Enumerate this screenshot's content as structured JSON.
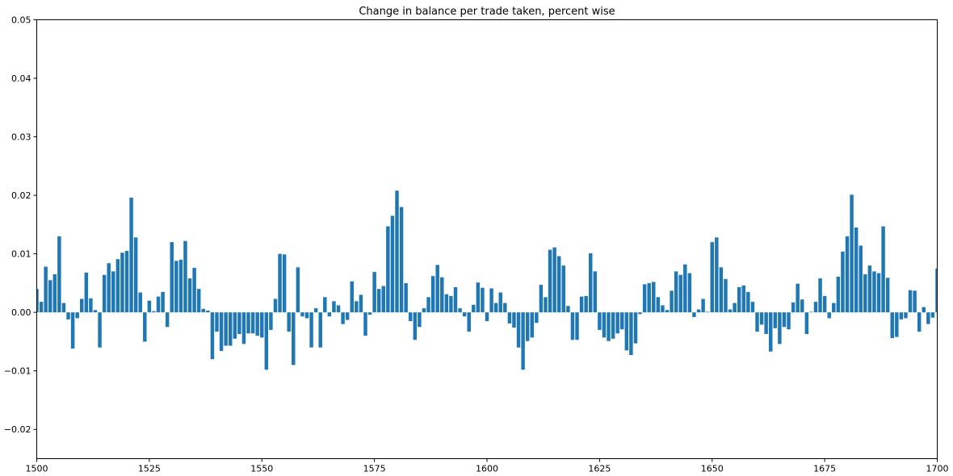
{
  "chart_data": {
    "type": "bar",
    "title": "Change in balance per trade taken, percent wise",
    "xlabel": "",
    "ylabel": "",
    "xlim": [
      1500,
      1700
    ],
    "ylim": [
      -0.025,
      0.05
    ],
    "xticks": [
      1500,
      1525,
      1550,
      1575,
      1600,
      1625,
      1650,
      1675,
      1700
    ],
    "xtick_labels": [
      "1500",
      "1525",
      "1550",
      "1575",
      "1600",
      "1625",
      "1650",
      "1675",
      "1700"
    ],
    "yticks": [
      -0.02,
      -0.01,
      0.0,
      0.01,
      0.02,
      0.03,
      0.04,
      0.05
    ],
    "ytick_labels": [
      "−0.02",
      "−0.01",
      "0.00",
      "0.01",
      "0.02",
      "0.03",
      "0.04",
      "0.05"
    ],
    "grid": false,
    "bar_color": "#1f77b4",
    "x_start": 1500,
    "values": [
      0.004,
      0.0018,
      0.0078,
      0.0055,
      0.0065,
      0.013,
      0.0016,
      -0.0012,
      -0.0062,
      -0.001,
      0.0023,
      0.0068,
      0.0024,
      0.0004,
      -0.006,
      0.0064,
      0.0084,
      0.007,
      0.0091,
      0.0102,
      0.0105,
      0.0196,
      0.0128,
      0.0034,
      -0.005,
      0.002,
      0.0002,
      0.0027,
      0.0035,
      -0.0025,
      0.012,
      0.0088,
      0.009,
      0.0122,
      0.0058,
      0.0076,
      0.004,
      0.0006,
      0.0003,
      -0.008,
      -0.0033,
      -0.0066,
      -0.0057,
      -0.0057,
      -0.0045,
      -0.0037,
      -0.0054,
      -0.0036,
      -0.0036,
      -0.004,
      -0.0043,
      -0.0098,
      -0.003,
      0.0023,
      0.01,
      0.0099,
      -0.0033,
      -0.009,
      0.0077,
      -0.0007,
      -0.001,
      -0.006,
      0.0007,
      -0.006,
      0.0026,
      -0.0007,
      0.0019,
      0.0012,
      -0.002,
      -0.0013,
      0.0053,
      0.0019,
      0.003,
      -0.004,
      -0.0004,
      0.0069,
      0.004,
      0.0045,
      0.0147,
      0.0165,
      0.0208,
      0.018,
      0.005,
      -0.0015,
      -0.0047,
      -0.0025,
      0.0007,
      0.0026,
      0.0062,
      0.0081,
      0.006,
      0.0031,
      0.0028,
      0.0043,
      0.0007,
      -0.0007,
      -0.0033,
      0.0013,
      0.0051,
      0.0042,
      -0.0015,
      0.0041,
      0.0016,
      0.0034,
      0.0016,
      -0.0019,
      -0.0026,
      -0.006,
      -0.0098,
      -0.0049,
      -0.0043,
      -0.0018,
      0.0047,
      0.0026,
      0.0107,
      0.0111,
      0.0096,
      0.008,
      0.0011,
      -0.0047,
      -0.0047,
      0.0027,
      0.0028,
      0.0101,
      0.007,
      -0.003,
      -0.0043,
      -0.0049,
      -0.0045,
      -0.0036,
      -0.0029,
      -0.0065,
      -0.0073,
      -0.0053,
      -0.0003,
      0.0048,
      0.005,
      0.0052,
      0.0026,
      0.0012,
      0.0004,
      0.0037,
      0.007,
      0.0064,
      0.0082,
      0.0067,
      -0.0008,
      0.0005,
      0.0023,
      0.0001,
      0.012,
      0.0128,
      0.0077,
      0.0057,
      0.0005,
      0.0016,
      0.0043,
      0.0046,
      0.0035,
      0.0018,
      -0.0033,
      -0.0021,
      -0.0037,
      -0.0067,
      -0.0027,
      -0.0054,
      -0.0025,
      -0.0029,
      0.0017,
      0.0049,
      0.0022,
      -0.0037,
      0.0001,
      0.0018,
      0.0058,
      0.0028,
      -0.001,
      0.0016,
      0.0061,
      0.0104,
      0.013,
      0.0201,
      0.0145,
      0.0114,
      0.0065,
      0.008,
      0.007,
      0.0067,
      0.0147,
      0.0059,
      -0.0044,
      -0.0042,
      -0.0012,
      -0.001,
      0.0038,
      0.0037,
      -0.0033,
      0.0009,
      -0.002,
      -0.0009,
      0.0075
    ]
  }
}
